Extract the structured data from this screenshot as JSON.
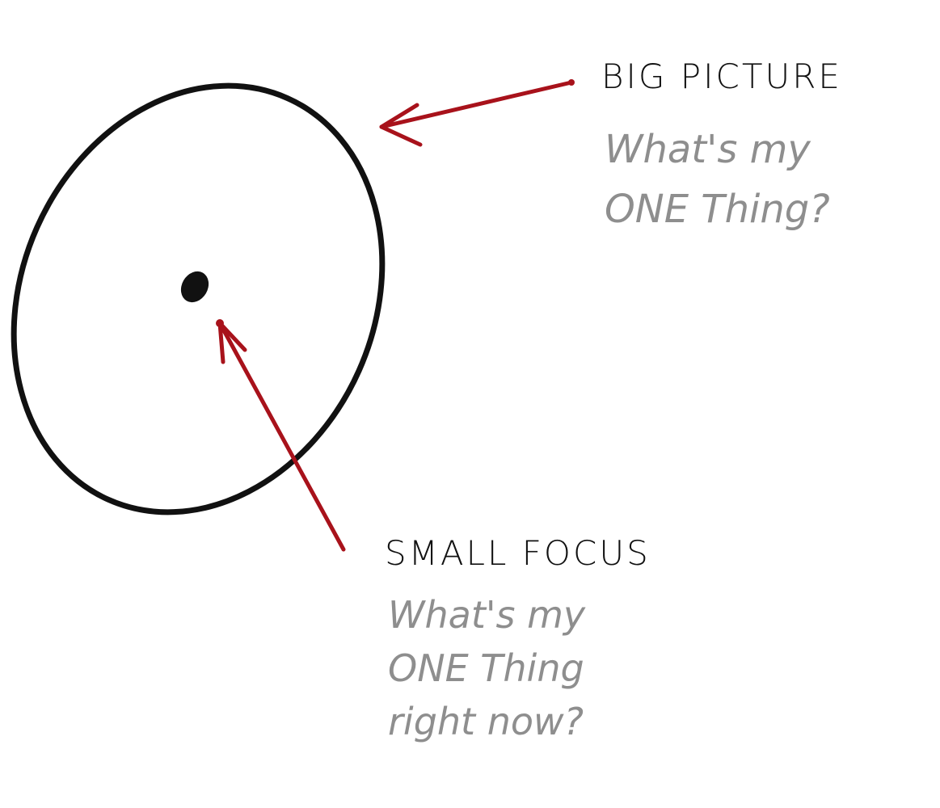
{
  "big_picture": {
    "heading": "BIG PICTURE",
    "question": "What's my\nONE Thing?"
  },
  "small_focus": {
    "heading": "SMALL FOCUS",
    "question": "What's my\nONE Thing\nright now?"
  },
  "colors": {
    "ink": "#111111",
    "arrow": "#a8121b",
    "question_text": "#8e8e8e",
    "background": "#ffffff"
  }
}
